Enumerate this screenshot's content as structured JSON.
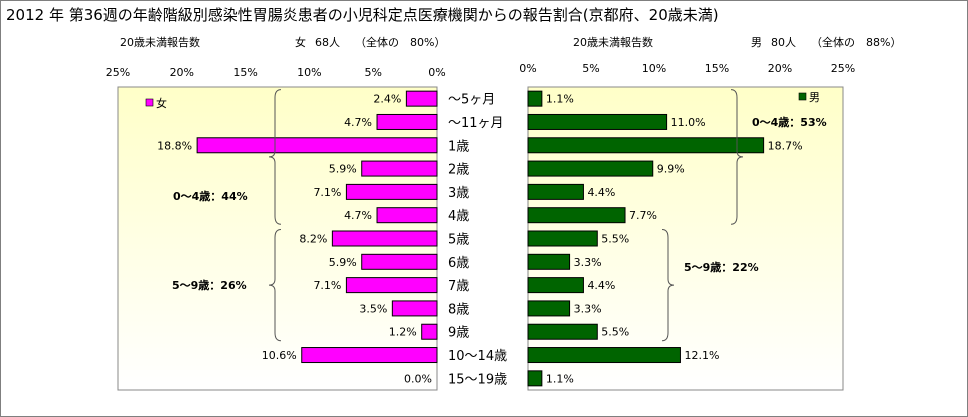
{
  "title": "2012 年 第36週の年齢階級別感染性胃腸炎患者の小児科定点医療機関からの報告割合(京都府、20歳未満)",
  "left_subtitle": {
    "label": "20歳未満報告数",
    "gender": "女",
    "count": "68人",
    "share": "（全体の　80%）"
  },
  "right_subtitle": {
    "label": "20歳未満報告数",
    "gender": "男",
    "count": "80人",
    "share": "（全体の　88%）"
  },
  "colors": {
    "female": "#ff00ff",
    "male": "#006400",
    "plot_gradient_top": "#ffffc8",
    "plot_gradient_bottom": "#ffffff"
  },
  "chart_data": [
    {
      "type": "bar",
      "orientation": "horizontal-reversed",
      "categories": [
        "～5ヶ月",
        "～11ヶ月",
        "1歳",
        "2歳",
        "3歳",
        "4歳",
        "5歳",
        "6歳",
        "7歳",
        "8歳",
        "9歳",
        "10～14歳",
        "15～19歳"
      ],
      "series": [
        {
          "name": "女",
          "values": [
            2.4,
            4.7,
            18.8,
            5.9,
            7.1,
            4.7,
            8.2,
            5.9,
            7.1,
            3.5,
            1.2,
            10.6,
            0.0
          ]
        }
      ],
      "data_labels": [
        "2.4%",
        "4.7%",
        "18.8%",
        "5.9%",
        "7.1%",
        "4.7%",
        "8.2%",
        "5.9%",
        "7.1%",
        "3.5%",
        "1.2%",
        "10.6%",
        "0.0%"
      ],
      "xlim": [
        0,
        25
      ],
      "ticks": [
        "25%",
        "20%",
        "15%",
        "10%",
        "5%",
        "0%"
      ],
      "legend": "top-left",
      "annotations": [
        {
          "text": "0～4歳：44%",
          "from_category": 0,
          "to_category": 5
        },
        {
          "text": "5～9歳：26%",
          "from_category": 6,
          "to_category": 10
        }
      ]
    },
    {
      "type": "bar",
      "orientation": "horizontal",
      "categories": [
        "～5ヶ月",
        "～11ヶ月",
        "1歳",
        "2歳",
        "3歳",
        "4歳",
        "5歳",
        "6歳",
        "7歳",
        "8歳",
        "9歳",
        "10～14歳",
        "15～19歳"
      ],
      "series": [
        {
          "name": "男",
          "values": [
            1.1,
            11.0,
            18.7,
            9.9,
            4.4,
            7.7,
            5.5,
            3.3,
            4.4,
            3.3,
            5.5,
            12.1,
            1.1
          ]
        }
      ],
      "data_labels": [
        "1.1%",
        "11.0%",
        "18.7%",
        "9.9%",
        "4.4%",
        "7.7%",
        "5.5%",
        "3.3%",
        "4.4%",
        "3.3%",
        "5.5%",
        "12.1%",
        "1.1%"
      ],
      "xlim": [
        0,
        25
      ],
      "ticks": [
        "0%",
        "5%",
        "10%",
        "15%",
        "20%",
        "25%"
      ],
      "legend": "top-right",
      "annotations": [
        {
          "text": "0～4歳：53%",
          "from_category": 0,
          "to_category": 5
        },
        {
          "text": "5～9歳：22%",
          "from_category": 6,
          "to_category": 10
        }
      ]
    }
  ]
}
